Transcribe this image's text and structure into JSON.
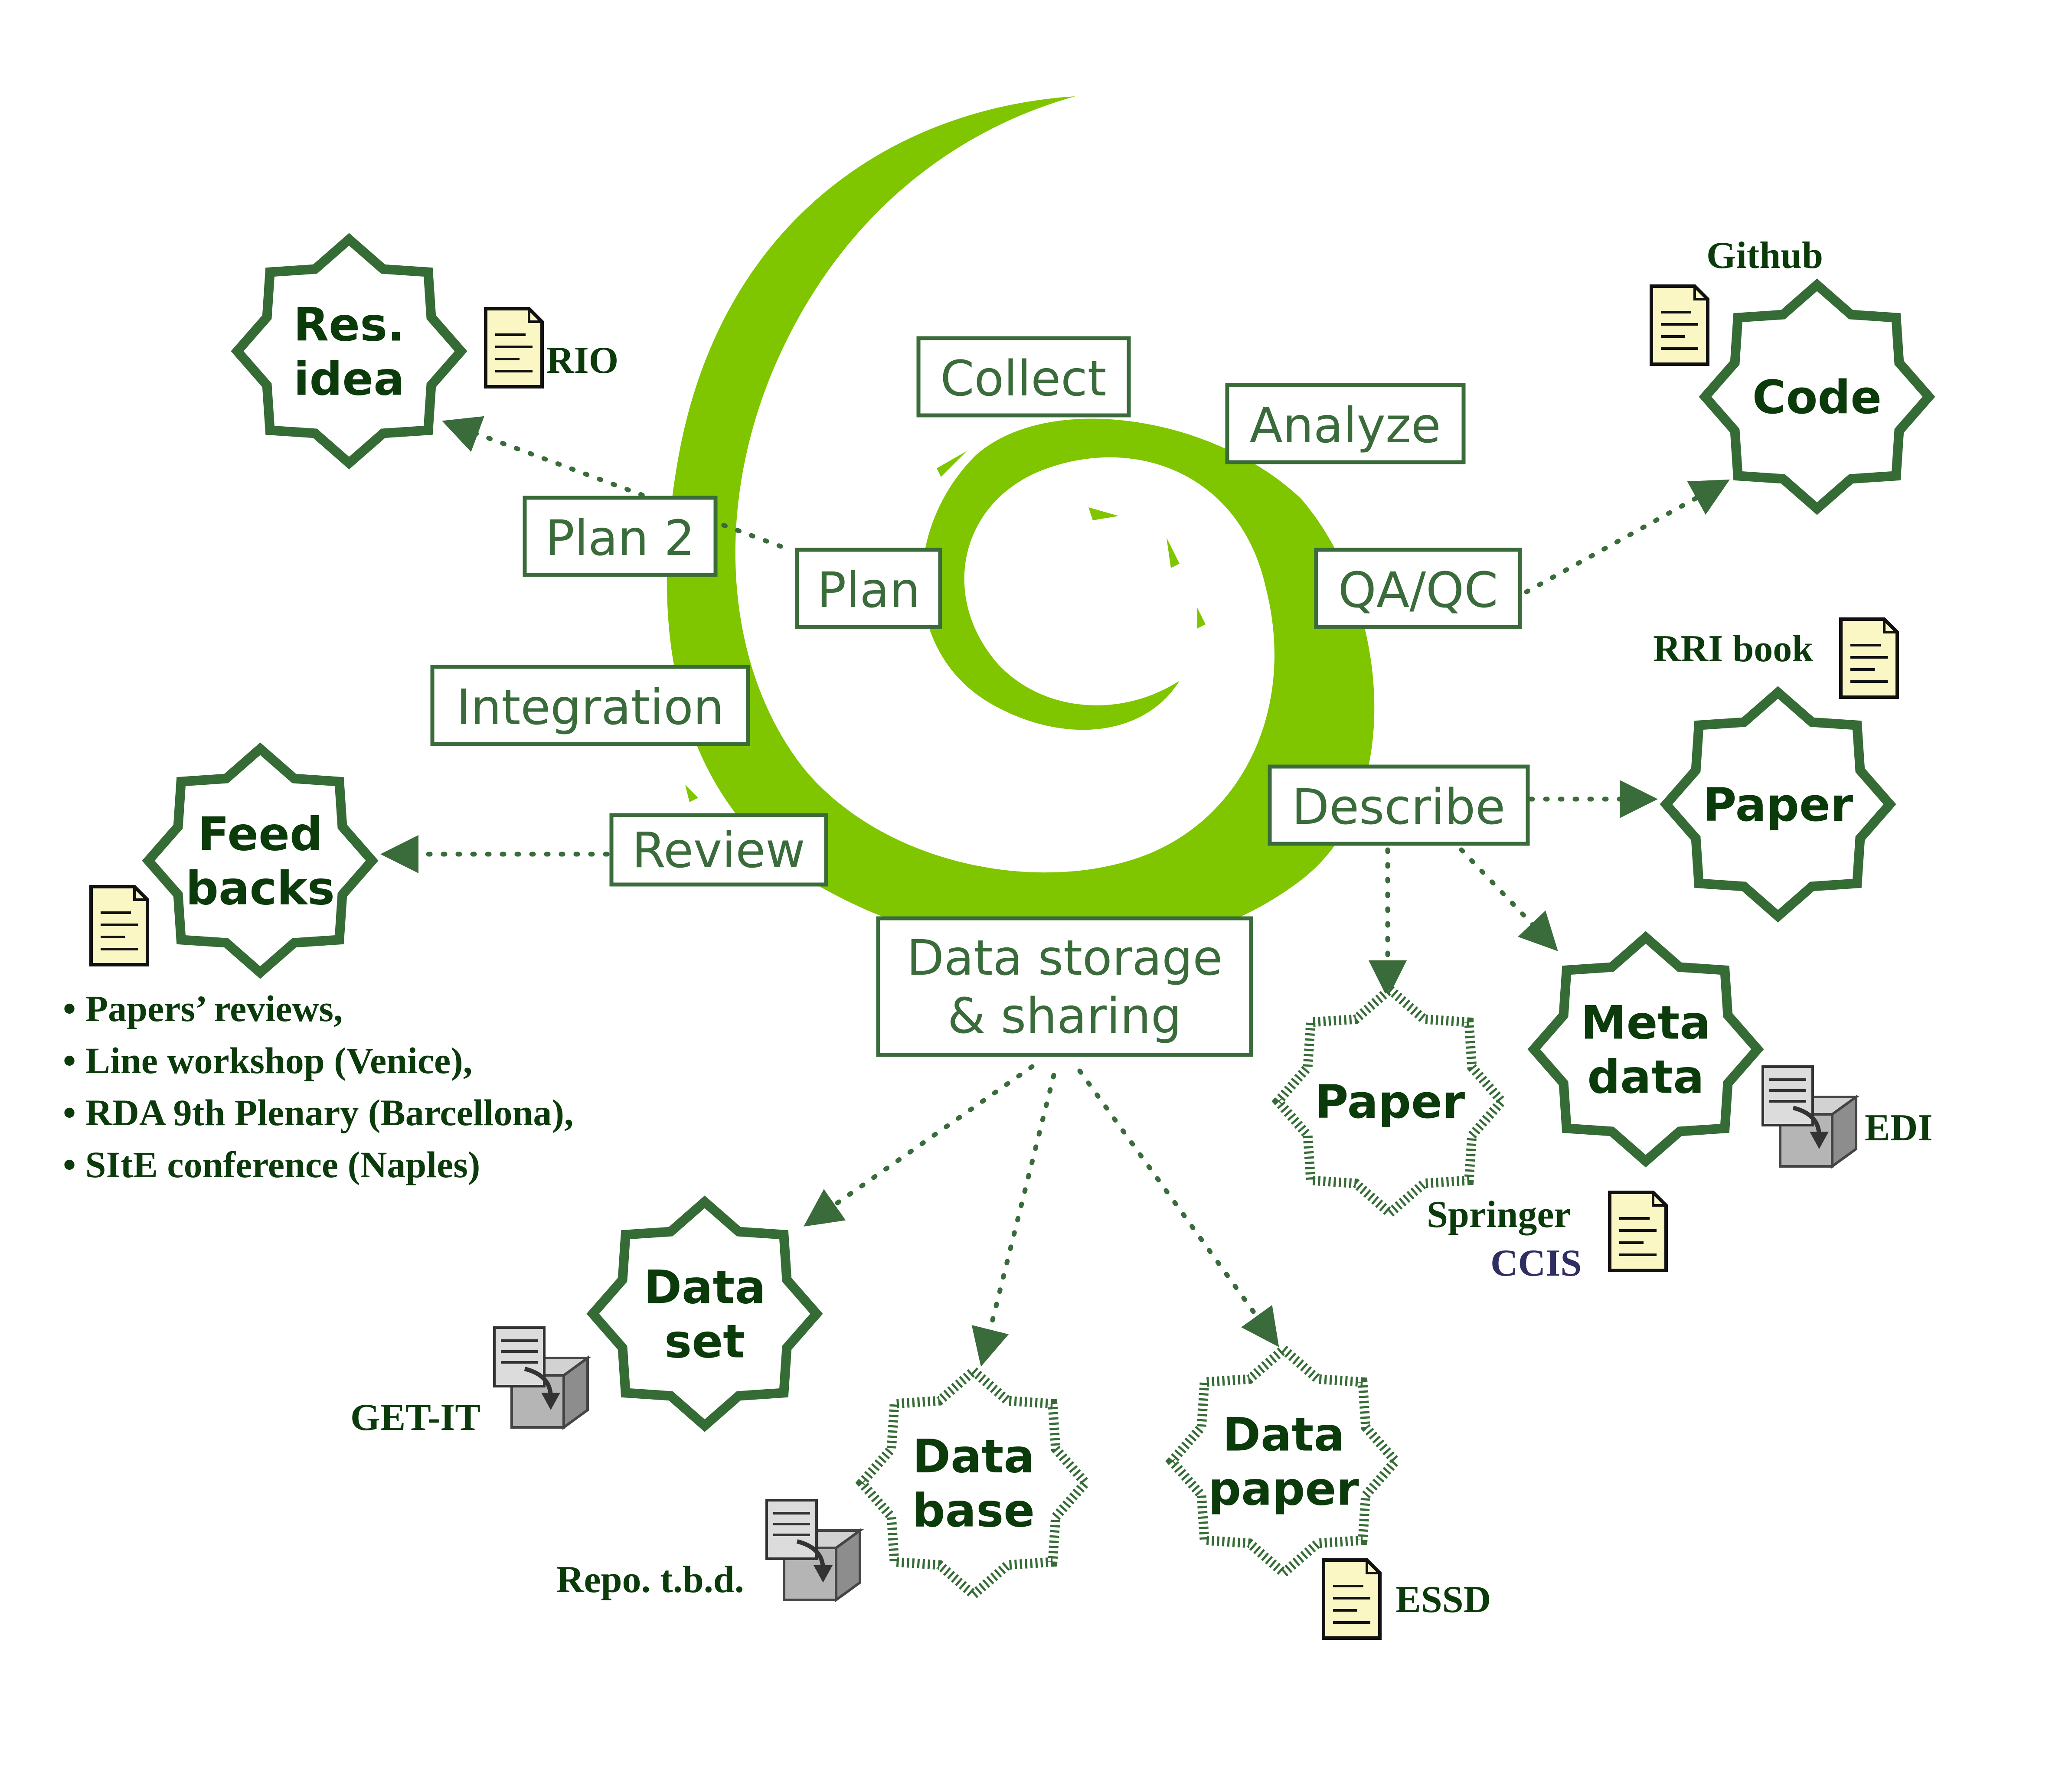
{
  "colors": {
    "swirl": "#80c600",
    "stage": "#3a6b3a",
    "star_stroke": "#356b35",
    "star_text": "#0b3a0b",
    "doc_fill": "#fbf7c5",
    "ccis": "#2e2e63"
  },
  "stages": {
    "collect": "Collect",
    "analyze": "Analyze",
    "qaqc": "QA/QC",
    "plan": "Plan",
    "plan2": "Plan 2",
    "integration": "Integration",
    "review": "Review",
    "describe": "Describe",
    "storage_line1": "Data storage",
    "storage_line2": "& sharing"
  },
  "outputs": {
    "res_idea": [
      "Res.",
      "idea"
    ],
    "code": [
      "Code"
    ],
    "feedbacks": [
      "Feed",
      "backs"
    ],
    "paper_rri": [
      "Paper"
    ],
    "metadata": [
      "Meta",
      "data"
    ],
    "paper_springer": [
      "Paper"
    ],
    "dataset": [
      "Data",
      "set"
    ],
    "database": [
      "Data",
      "base"
    ],
    "datapaper": [
      "Data",
      "paper"
    ]
  },
  "labels": {
    "rio": "RIO",
    "github": "Github",
    "rri_book": "RRI book",
    "edi": "EDI",
    "springer": "Springer",
    "ccis": "CCIS",
    "get_it": "GET-IT",
    "repo": "Repo. t.b.d.",
    "essd": "ESSD"
  },
  "icons": {
    "document": "document-icon",
    "repository": "repository-box-icon",
    "swirl": "spiral-swirl"
  },
  "feedback_list": [
    "Papers’ reviews,",
    "Line workshop (Venice),",
    "RDA 9th Plenary (Barcellona),",
    "SItE conference (Naples)"
  ]
}
